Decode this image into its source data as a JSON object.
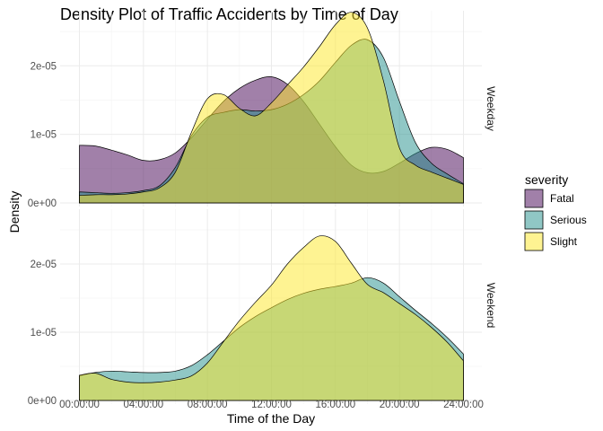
{
  "chart_data": {
    "type": "area",
    "title": "Density Plot of Traffic Accidents by Time of Day",
    "xlabel": "Time of the Day",
    "ylabel": "Density",
    "x_ticks": [
      "00:00:00",
      "04:00:00",
      "08:00:00",
      "12:00:00",
      "16:00:00",
      "20:00:00",
      "24:00:00"
    ],
    "x_hours_range": [
      0,
      24
    ],
    "y_ticks": [
      {
        "value": 0,
        "label": "0e+00"
      },
      {
        "value": 1e-05,
        "label": "1e-05"
      },
      {
        "value": 2e-05,
        "label": "2e-05"
      }
    ],
    "legend": {
      "title": "severity",
      "position": "right"
    },
    "grid": true,
    "series_style": [
      {
        "name": "Fatal",
        "color": "#440154",
        "fill_alpha": 0.5
      },
      {
        "name": "Serious",
        "color": "#21908C",
        "fill_alpha": 0.5
      },
      {
        "name": "Slight",
        "color": "#FDE725",
        "fill_alpha": 0.5
      }
    ],
    "x_unit": "hours",
    "panels": [
      {
        "label": "Weekday",
        "ylim": [
          0,
          2.75e-05
        ],
        "series": [
          {
            "name": "Fatal",
            "x": [
              0,
              1,
              2,
              3,
              4,
              5,
              6,
              7,
              8,
              9,
              10,
              11,
              12,
              13,
              14,
              15,
              16,
              17,
              18,
              19,
              20,
              21,
              22,
              23,
              24
            ],
            "y": [
              8.4e-06,
              8.3e-06,
              7.7e-06,
              7e-06,
              6.2e-06,
              6.3e-06,
              7.3e-06,
              9.5e-06,
              1.22e-05,
              1.48e-05,
              1.67e-05,
              1.79e-05,
              1.84e-05,
              1.73e-05,
              1.48e-05,
              1.15e-05,
              8.2e-06,
              5.5e-06,
              4.4e-06,
              4.6e-06,
              5.8e-06,
              7.2e-06,
              8.1e-06,
              7.8e-06,
              6.6e-06
            ]
          },
          {
            "name": "Serious",
            "x": [
              0,
              1,
              2,
              3,
              4,
              5,
              6,
              7,
              8,
              9,
              10,
              11,
              12,
              13,
              14,
              15,
              16,
              17,
              18,
              19,
              20,
              21,
              22,
              23,
              24
            ],
            "y": [
              1.6e-06,
              1.5e-06,
              1.4e-06,
              1.5e-06,
              1.8e-06,
              2.5e-06,
              5.2e-06,
              9.8e-06,
              1.25e-05,
              1.32e-05,
              1.36e-05,
              1.34e-05,
              1.36e-05,
              1.44e-05,
              1.58e-05,
              1.78e-05,
              2.05e-05,
              2.3e-05,
              2.38e-05,
              2.12e-05,
              1.48e-05,
              8.8e-06,
              5.8e-06,
              4.2e-06,
              2.8e-06
            ]
          },
          {
            "name": "Slight",
            "x": [
              0,
              1,
              2,
              3,
              4,
              5,
              6,
              7,
              8,
              9,
              10,
              11,
              12,
              13,
              14,
              15,
              16,
              17,
              18,
              19,
              20,
              21,
              22,
              23,
              24
            ],
            "y": [
              1.1e-06,
              1.2e-06,
              1.2e-06,
              1.3e-06,
              1.6e-06,
              2.2e-06,
              4.5e-06,
              1.03e-05,
              1.52e-05,
              1.58e-05,
              1.38e-05,
              1.27e-05,
              1.46e-05,
              1.72e-05,
              1.98e-05,
              2.28e-05,
              2.6e-05,
              2.78e-05,
              2.55e-05,
              1.78e-05,
              8e-06,
              5.5e-06,
              4.5e-06,
              3.6e-06,
              2.7e-06
            ]
          }
        ]
      },
      {
        "label": "Weekend",
        "ylim": [
          0,
          2.75e-05
        ],
        "series": [
          {
            "name": "Serious",
            "x": [
              0,
              1,
              2,
              3,
              4,
              5,
              6,
              7,
              8,
              9,
              10,
              11,
              12,
              13,
              14,
              15,
              16,
              17,
              18,
              19,
              20,
              21,
              22,
              23,
              24
            ],
            "y": [
              3.6e-06,
              4.1e-06,
              4.3e-06,
              4.2e-06,
              4.1e-06,
              4.1e-06,
              4.3e-06,
              5.1e-06,
              6.7e-06,
              8.7e-06,
              1.07e-05,
              1.23e-05,
              1.36e-05,
              1.48e-05,
              1.57e-05,
              1.63e-05,
              1.67e-05,
              1.72e-05,
              1.8e-05,
              1.72e-05,
              1.52e-05,
              1.32e-05,
              1.13e-05,
              9.2e-06,
              6.8e-06
            ]
          },
          {
            "name": "Slight",
            "x": [
              0,
              1,
              2,
              3,
              4,
              5,
              6,
              7,
              8,
              9,
              10,
              11,
              12,
              13,
              14,
              15,
              16,
              17,
              18,
              19,
              20,
              21,
              22,
              23,
              24
            ],
            "y": [
              3.7e-06,
              4e-06,
              3.1e-06,
              2.7e-06,
              2.6e-06,
              2.7e-06,
              3e-06,
              3.6e-06,
              5.5e-06,
              8.6e-06,
              1.17e-05,
              1.44e-05,
              1.69e-05,
              2e-05,
              2.24e-05,
              2.41e-05,
              2.33e-05,
              2.01e-05,
              1.7e-05,
              1.58e-05,
              1.42e-05,
              1.26e-05,
              1.07e-05,
              8.5e-06,
              5.8e-06
            ]
          }
        ]
      }
    ]
  }
}
